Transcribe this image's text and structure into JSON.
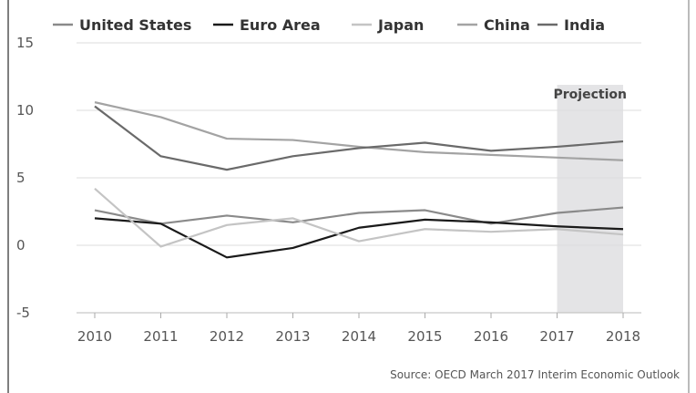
{
  "chart_data": {
    "type": "line",
    "x": [
      2010,
      2011,
      2012,
      2013,
      2014,
      2015,
      2016,
      2017,
      2018
    ],
    "ylim": [
      -5,
      15
    ],
    "yticks": [
      15,
      10,
      5,
      0,
      -5
    ],
    "grid": true,
    "legend_position": "top",
    "series": [
      {
        "name": "United States",
        "color": "#8a8a8a",
        "values": [
          2.6,
          1.6,
          2.2,
          1.7,
          2.4,
          2.6,
          1.6,
          2.4,
          2.8
        ]
      },
      {
        "name": "Euro Area",
        "color": "#1a1a1a",
        "values": [
          2.0,
          1.6,
          -0.9,
          -0.2,
          1.3,
          1.9,
          1.7,
          1.4,
          1.2
        ]
      },
      {
        "name": "Japan",
        "color": "#c4c4c4",
        "values": [
          4.2,
          -0.1,
          1.5,
          2.0,
          0.3,
          1.2,
          1.0,
          1.2,
          0.8
        ]
      },
      {
        "name": "China",
        "color": "#a3a3a3",
        "values": [
          10.6,
          9.5,
          7.9,
          7.8,
          7.3,
          6.9,
          6.7,
          6.5,
          6.3
        ]
      },
      {
        "name": "India",
        "color": "#6a6a6a",
        "values": [
          10.3,
          6.6,
          5.6,
          6.6,
          7.2,
          7.6,
          7.0,
          7.3,
          7.7
        ]
      }
    ],
    "projection": {
      "label": "Projection",
      "from": 2017,
      "to": 2018
    },
    "source": "Source: OECD March 2017 Interim Economic Outlook"
  }
}
